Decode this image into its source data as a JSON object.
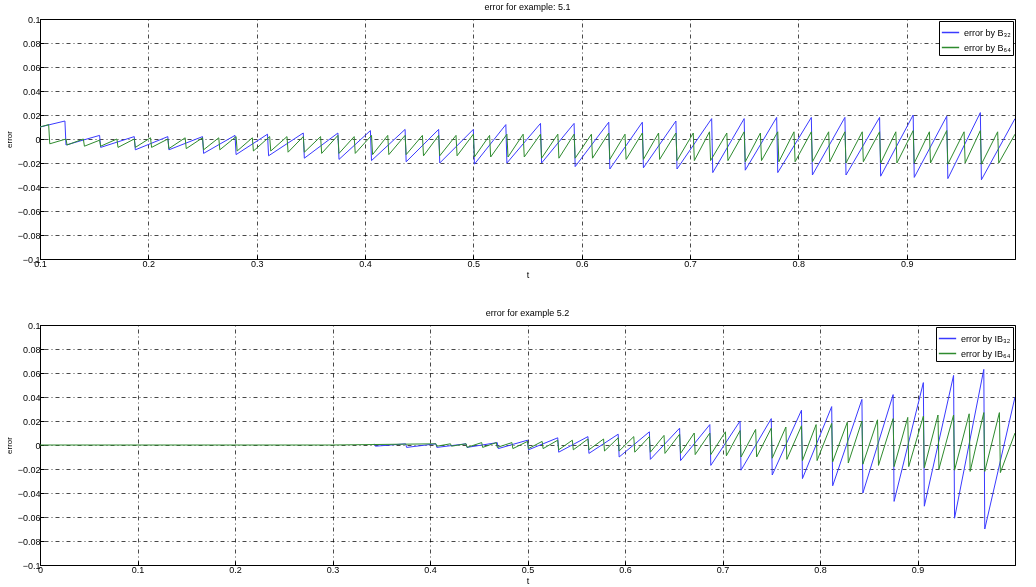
{
  "chart_data": [
    {
      "type": "line",
      "title": "error for example: 5.1",
      "xlabel": "t",
      "ylabel": "error",
      "xlim": [
        0.1,
        1.0
      ],
      "xticks": [
        0.1,
        0.2,
        0.3,
        0.4,
        0.5,
        0.6,
        0.7,
        0.8,
        0.9
      ],
      "ylim": [
        -0.1,
        0.1
      ],
      "yticks": [
        -0.1,
        -0.08,
        -0.06,
        -0.04,
        -0.02,
        0,
        0.02,
        0.04,
        0.06,
        0.08,
        0.1
      ],
      "grid": true,
      "legend": "top right",
      "series": [
        {
          "name": "error by B₃₂",
          "color": "#3a3aff",
          "x": [
            0.1,
            0.123,
            0.124,
            0.155,
            0.156,
            0.187,
            0.188,
            0.218,
            0.219,
            0.25,
            0.251,
            0.28,
            0.281,
            0.31,
            0.311,
            0.343,
            0.344,
            0.375,
            0.376,
            0.405,
            0.406,
            0.437,
            0.438,
            0.468,
            0.469,
            0.5,
            0.501,
            0.53,
            0.531,
            0.562,
            0.563,
            0.593,
            0.594,
            0.625,
            0.626,
            0.656,
            0.657,
            0.687,
            0.688,
            0.72,
            0.721,
            0.75,
            0.751,
            0.78,
            0.781,
            0.812,
            0.813,
            0.843,
            0.844,
            0.875,
            0.876,
            0.906,
            0.907,
            0.937,
            0.938,
            0.968,
            0.969,
            1.0
          ],
          "values": [
            0.01,
            0.015,
            -0.005,
            0.003,
            -0.007,
            0.002,
            -0.009,
            0.002,
            -0.009,
            0.002,
            -0.012,
            0.003,
            -0.013,
            0.004,
            -0.014,
            0.005,
            -0.016,
            0.005,
            -0.017,
            0.007,
            -0.018,
            0.008,
            -0.019,
            0.008,
            -0.02,
            0.008,
            -0.021,
            0.012,
            -0.02,
            0.013,
            -0.02,
            0.013,
            -0.023,
            0.014,
            -0.025,
            0.014,
            -0.024,
            0.015,
            -0.025,
            0.017,
            -0.028,
            0.017,
            -0.026,
            0.018,
            -0.028,
            0.018,
            -0.03,
            0.018,
            -0.03,
            0.018,
            -0.031,
            0.02,
            -0.032,
            0.019,
            -0.033,
            0.022,
            -0.034,
            0.017
          ]
        },
        {
          "name": "error by B₆₄",
          "color": "#2e8b2e",
          "x": [
            0.1,
            0.108,
            0.109,
            0.124,
            0.125,
            0.14,
            0.141,
            0.155,
            0.156,
            0.171,
            0.172,
            0.187,
            0.188,
            0.202,
            0.203,
            0.218,
            0.219,
            0.234,
            0.235,
            0.25,
            0.251,
            0.265,
            0.266,
            0.281,
            0.282,
            0.296,
            0.297,
            0.312,
            0.313,
            0.328,
            0.329,
            0.343,
            0.344,
            0.359,
            0.36,
            0.375,
            0.376,
            0.39,
            0.391,
            0.406,
            0.407,
            0.421,
            0.422,
            0.437,
            0.438,
            0.453,
            0.454,
            0.468,
            0.469,
            0.484,
            0.485,
            0.5,
            0.501,
            0.515,
            0.516,
            0.531,
            0.532,
            0.546,
            0.547,
            0.562,
            0.563,
            0.578,
            0.579,
            0.593,
            0.594,
            0.609,
            0.61,
            0.625,
            0.626,
            0.64,
            0.641,
            0.656,
            0.657,
            0.671,
            0.672,
            0.687,
            0.688,
            0.703,
            0.704,
            0.718,
            0.719,
            0.734,
            0.735,
            0.75,
            0.751,
            0.765,
            0.766,
            0.781,
            0.782,
            0.796,
            0.797,
            0.812,
            0.813,
            0.828,
            0.829,
            0.843,
            0.844,
            0.859,
            0.86,
            0.875,
            0.876,
            0.89,
            0.891,
            0.906,
            0.907,
            0.921,
            0.922,
            0.937,
            0.938,
            0.953,
            0.954,
            0.968,
            0.969,
            0.984,
            0.985,
            1.0
          ],
          "values": [
            0.01,
            0.012,
            -0.004,
            0.0,
            -0.005,
            0.0,
            -0.006,
            -0.001,
            -0.006,
            0.0,
            -0.007,
            0.0,
            -0.007,
            0.001,
            -0.007,
            0.0,
            -0.008,
            0.001,
            -0.008,
            0.001,
            -0.009,
            0.001,
            -0.009,
            0.002,
            -0.01,
            0.001,
            -0.01,
            0.002,
            -0.01,
            0.002,
            -0.011,
            0.002,
            -0.011,
            0.002,
            -0.012,
            0.003,
            -0.012,
            0.002,
            -0.012,
            0.003,
            -0.013,
            0.003,
            -0.013,
            0.003,
            -0.013,
            0.003,
            -0.014,
            0.003,
            -0.014,
            0.003,
            -0.014,
            0.004,
            -0.015,
            0.003,
            -0.015,
            0.004,
            -0.015,
            0.004,
            -0.015,
            0.004,
            -0.016,
            0.004,
            -0.016,
            0.004,
            -0.016,
            0.004,
            -0.016,
            0.005,
            -0.017,
            0.004,
            -0.017,
            0.005,
            -0.017,
            0.005,
            -0.017,
            0.005,
            -0.018,
            0.005,
            -0.018,
            0.006,
            -0.018,
            0.005,
            -0.018,
            0.006,
            -0.019,
            0.005,
            -0.018,
            0.006,
            -0.019,
            0.006,
            -0.019,
            0.006,
            -0.019,
            0.006,
            -0.019,
            0.006,
            -0.02,
            0.006,
            -0.019,
            0.006,
            -0.02,
            0.006,
            -0.02,
            0.007,
            -0.02,
            0.006,
            -0.02,
            0.007,
            -0.021,
            0.006,
            -0.02,
            0.007,
            -0.021,
            0.006,
            -0.02,
            0.004
          ]
        }
      ]
    },
    {
      "type": "line",
      "title": "error for example 5.2",
      "xlabel": "t",
      "ylabel": "error",
      "xlim": [
        0,
        1.0
      ],
      "xticks": [
        0,
        0.1,
        0.2,
        0.3,
        0.4,
        0.5,
        0.6,
        0.7,
        0.8,
        0.9
      ],
      "ylim": [
        -0.1,
        0.1
      ],
      "yticks": [
        -0.1,
        -0.08,
        -0.06,
        -0.04,
        -0.02,
        0,
        0.02,
        0.04,
        0.06,
        0.08,
        0.1
      ],
      "grid": true,
      "legend": "top right",
      "series": [
        {
          "name": "error by IB₃₂",
          "color": "#3a3aff",
          "x": [
            0.343,
            0.344,
            0.375,
            0.376,
            0.406,
            0.407,
            0.437,
            0.438,
            0.469,
            0.47,
            0.5,
            0.501,
            0.531,
            0.532,
            0.562,
            0.563,
            0.593,
            0.594,
            0.625,
            0.626,
            0.656,
            0.657,
            0.687,
            0.688,
            0.718,
            0.719,
            0.75,
            0.751,
            0.781,
            0.782,
            0.812,
            0.813,
            0.843,
            0.844,
            0.875,
            0.876,
            0.906,
            0.907,
            0.937,
            0.938,
            0.968,
            0.969,
            1.0
          ],
          "values": [
            0.001,
            -0.001,
            0.001,
            -0.002,
            0.001,
            -0.002,
            0.001,
            -0.002,
            0.002,
            -0.003,
            0.004,
            -0.004,
            0.006,
            -0.006,
            0.007,
            -0.007,
            0.009,
            -0.01,
            0.011,
            -0.012,
            0.014,
            -0.013,
            0.017,
            -0.017,
            0.02,
            -0.021,
            0.022,
            -0.025,
            0.029,
            -0.028,
            0.032,
            -0.034,
            0.038,
            -0.04,
            0.042,
            -0.047,
            0.052,
            -0.051,
            0.058,
            -0.061,
            0.063,
            -0.07,
            0.04
          ]
        },
        {
          "name": "error by IB₆₄",
          "color": "#2e8b2e",
          "x": [
            0,
            0.3,
            0.406,
            0.407,
            0.421,
            0.422,
            0.437,
            0.438,
            0.453,
            0.454,
            0.468,
            0.469,
            0.484,
            0.485,
            0.5,
            0.501,
            0.515,
            0.516,
            0.531,
            0.532,
            0.546,
            0.547,
            0.562,
            0.563,
            0.578,
            0.579,
            0.593,
            0.594,
            0.609,
            0.61,
            0.625,
            0.626,
            0.64,
            0.641,
            0.656,
            0.657,
            0.671,
            0.672,
            0.687,
            0.688,
            0.703,
            0.704,
            0.718,
            0.719,
            0.734,
            0.735,
            0.75,
            0.751,
            0.765,
            0.766,
            0.781,
            0.782,
            0.796,
            0.797,
            0.812,
            0.813,
            0.828,
            0.829,
            0.843,
            0.844,
            0.859,
            0.86,
            0.875,
            0.876,
            0.89,
            0.891,
            0.906,
            0.907,
            0.921,
            0.922,
            0.937,
            0.938,
            0.953,
            0.954,
            0.968,
            0.969,
            0.984,
            0.985,
            1.0
          ],
          "values": [
            0,
            0,
            0.001,
            -0.001,
            0.001,
            -0.001,
            0.001,
            -0.002,
            0.002,
            -0.002,
            0.002,
            -0.002,
            0.002,
            -0.003,
            0.003,
            -0.003,
            0.003,
            -0.003,
            0.004,
            -0.004,
            0.004,
            -0.004,
            0.005,
            -0.004,
            0.005,
            -0.005,
            0.006,
            -0.005,
            0.007,
            -0.006,
            0.007,
            -0.006,
            0.008,
            -0.007,
            0.009,
            -0.007,
            0.01,
            -0.008,
            0.01,
            -0.008,
            0.011,
            -0.009,
            0.012,
            -0.01,
            0.013,
            -0.01,
            0.014,
            -0.011,
            0.015,
            -0.012,
            0.016,
            -0.013,
            0.017,
            -0.013,
            0.018,
            -0.014,
            0.019,
            -0.015,
            0.02,
            -0.016,
            0.021,
            -0.017,
            0.022,
            -0.018,
            0.023,
            -0.018,
            0.024,
            -0.019,
            0.025,
            -0.02,
            0.025,
            -0.021,
            0.026,
            -0.022,
            0.027,
            -0.022,
            0.027,
            -0.023,
            0.01
          ]
        }
      ]
    }
  ]
}
